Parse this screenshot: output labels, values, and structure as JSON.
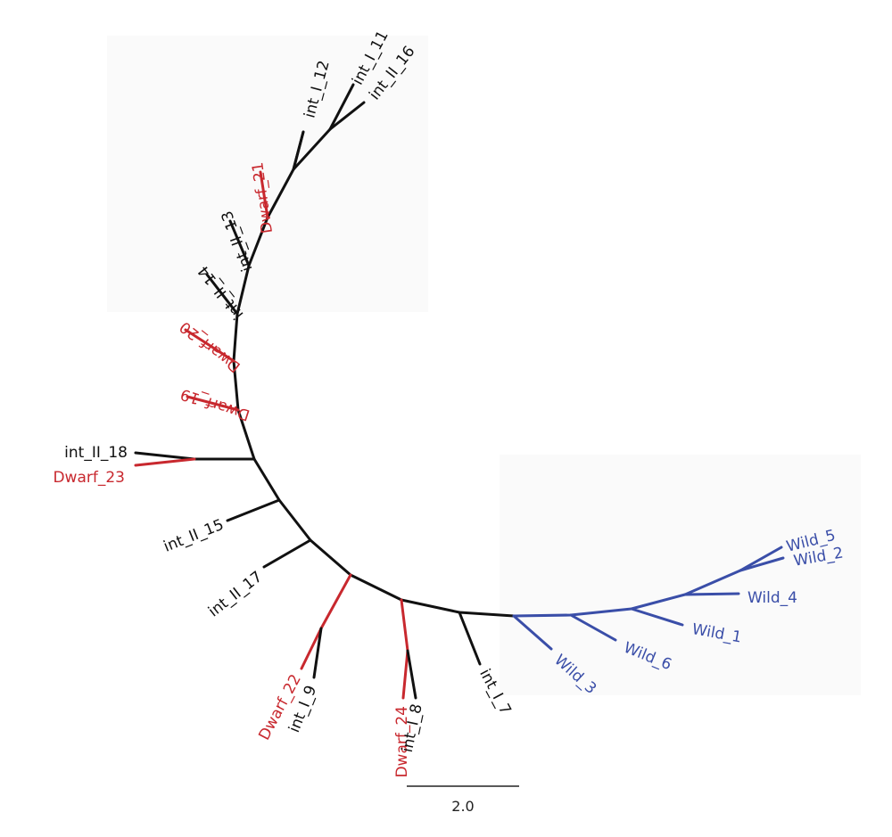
{
  "colors": {
    "dwarf": "#c8282e",
    "intermediate": "#111111",
    "wild": "#3a4ea8"
  },
  "scale_bar": {
    "label": "2.0",
    "length": 2.0
  },
  "groups": [
    "dwarf",
    "intermediate",
    "wild"
  ],
  "leaves": [
    {
      "id": "int_I_11",
      "label": "int_I_11",
      "group": "intermediate"
    },
    {
      "id": "int_II_16",
      "label": "int_II_16",
      "group": "intermediate"
    },
    {
      "id": "int_I_12",
      "label": "int_I_12",
      "group": "intermediate"
    },
    {
      "id": "Dwarf_21",
      "label": "Dwarf_21",
      "group": "dwarf"
    },
    {
      "id": "int_II_13",
      "label": "int_II_13",
      "group": "intermediate"
    },
    {
      "id": "int_II_14",
      "label": "int_II_14",
      "group": "intermediate"
    },
    {
      "id": "Dwarf_20",
      "label": "Dwarf_20",
      "group": "dwarf"
    },
    {
      "id": "Dwarf_19",
      "label": "Dwarf_19",
      "group": "dwarf"
    },
    {
      "id": "int_II_18",
      "label": "int_II_18",
      "group": "intermediate"
    },
    {
      "id": "Dwarf_23",
      "label": "Dwarf_23",
      "group": "dwarf"
    },
    {
      "id": "int_II_15",
      "label": "int_II_15",
      "group": "intermediate"
    },
    {
      "id": "int_II_17",
      "label": "int_II_17",
      "group": "intermediate"
    },
    {
      "id": "Dwarf_22",
      "label": "Dwarf_22",
      "group": "dwarf"
    },
    {
      "id": "int_I_9",
      "label": "int_I_9",
      "group": "intermediate"
    },
    {
      "id": "Dwarf_24",
      "label": "Dwarf_24",
      "group": "dwarf"
    },
    {
      "id": "int_I_8",
      "label": "int_I_8",
      "group": "intermediate"
    },
    {
      "id": "int_I_7",
      "label": "int_I_7",
      "group": "intermediate"
    },
    {
      "id": "Wild_3",
      "label": "Wild_3",
      "group": "wild"
    },
    {
      "id": "Wild_6",
      "label": "Wild_6",
      "group": "wild"
    },
    {
      "id": "Wild_1",
      "label": "Wild_1",
      "group": "wild"
    },
    {
      "id": "Wild_4",
      "label": "Wild_4",
      "group": "wild"
    },
    {
      "id": "Wild_2",
      "label": "Wild_2",
      "group": "wild"
    },
    {
      "id": "Wild_5",
      "label": "Wild_5",
      "group": "wild"
    }
  ]
}
